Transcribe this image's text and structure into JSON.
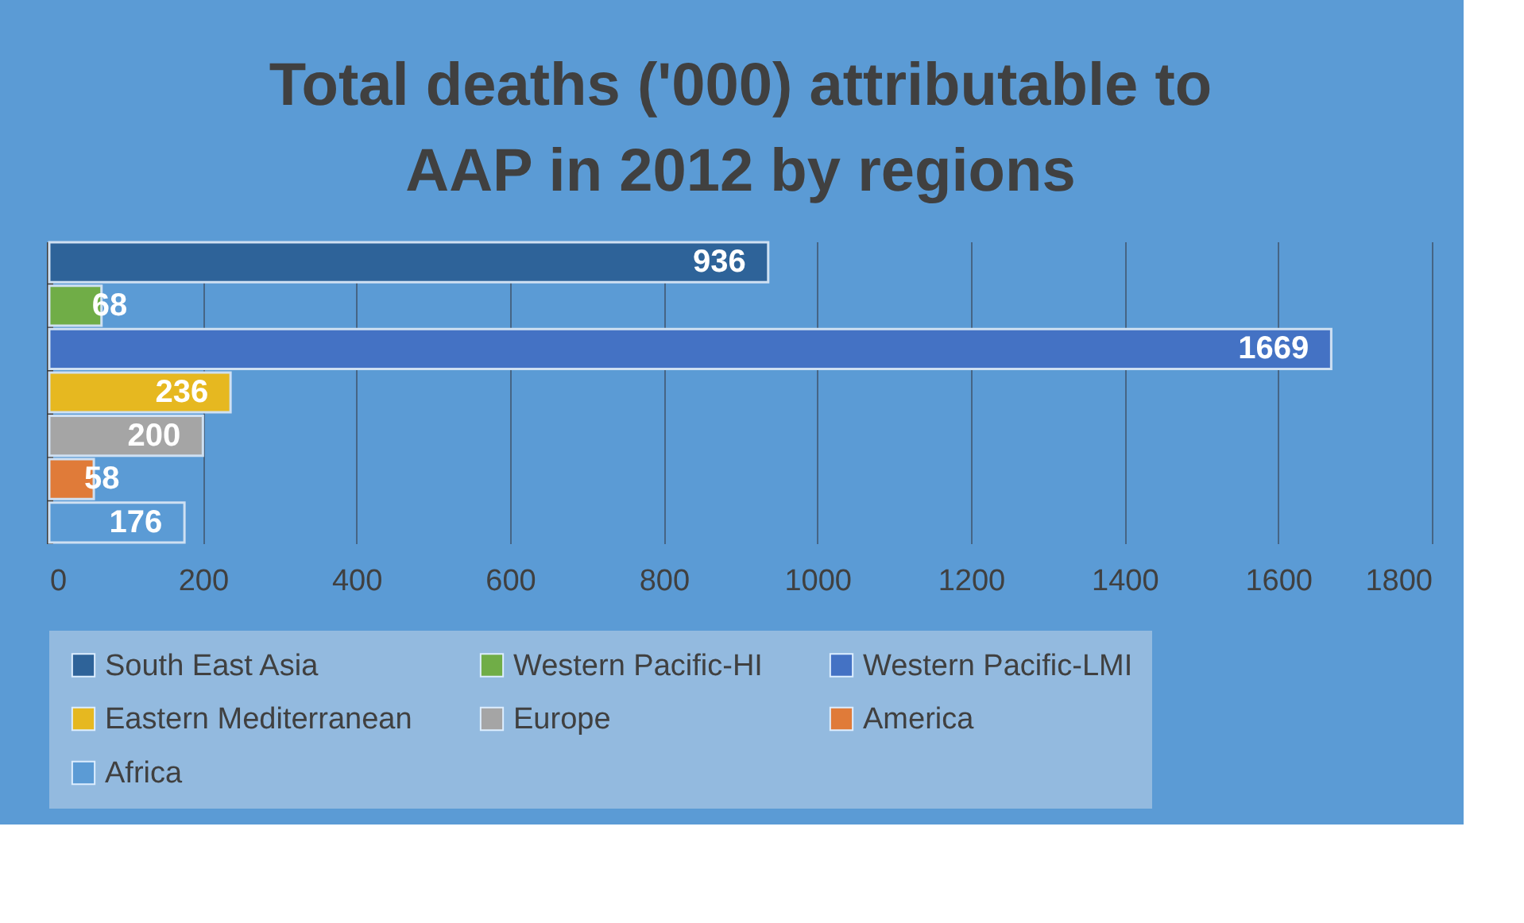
{
  "chart_data": {
    "type": "bar",
    "orientation": "horizontal",
    "title": "Total deaths ('000) attributable to AAP in 2012 by regions",
    "categories": [
      null
    ],
    "series": [
      {
        "name": "South East Asia",
        "color": "#2e6399",
        "values": [
          936
        ]
      },
      {
        "name": "Western Pacific-HI",
        "color": "#70ad47",
        "values": [
          68
        ]
      },
      {
        "name": "Western Pacific-LMI",
        "color": "#4472c4",
        "values": [
          1669
        ]
      },
      {
        "name": "Eastern Mediterranean",
        "color": "#e6b820",
        "values": [
          236
        ]
      },
      {
        "name": "Europe",
        "color": "#a5a5a5",
        "values": [
          200
        ]
      },
      {
        "name": "America",
        "color": "#e07b39",
        "values": [
          58
        ]
      },
      {
        "name": "Africa",
        "color": "#5b9bd5",
        "values": [
          176
        ]
      }
    ],
    "xlim": [
      0,
      1800
    ],
    "xticks": [
      0,
      200,
      400,
      600,
      800,
      1000,
      1200,
      1400,
      1600,
      1800
    ],
    "grid": "x",
    "legend": "bottom",
    "data_labels": true
  }
}
